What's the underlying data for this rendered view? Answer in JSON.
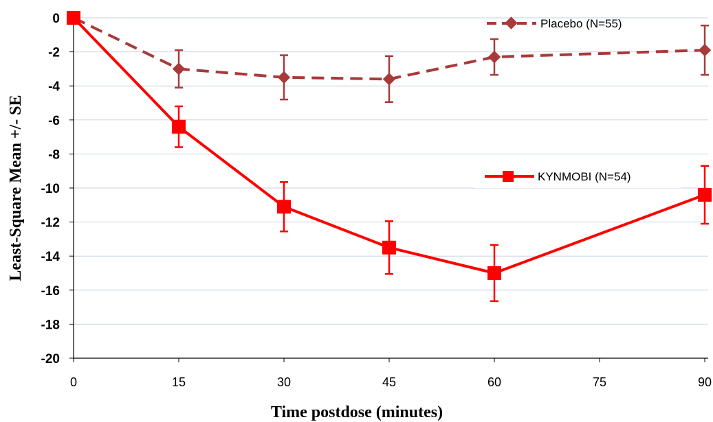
{
  "chart_data": {
    "type": "line",
    "title": "",
    "xlabel": "Time postdose (minutes)",
    "ylabel": "Least-Square Mean +/- SE",
    "x": [
      0,
      15,
      30,
      45,
      60,
      90
    ],
    "xticks": [
      0,
      15,
      30,
      45,
      60,
      75,
      90
    ],
    "xlim": [
      0,
      90
    ],
    "ylim": [
      -20,
      0
    ],
    "yticks": [
      0,
      -2,
      -4,
      -6,
      -8,
      -10,
      -12,
      -14,
      -16,
      -18,
      -20
    ],
    "grid": "horizontal",
    "series": [
      {
        "name": "Placebo (N=55)",
        "color": "#a83a3a",
        "line_style": "dashed",
        "marker": "diamond",
        "values": [
          0,
          -3.0,
          -3.5,
          -3.6,
          -2.3,
          -1.9
        ],
        "se": [
          0,
          1.1,
          1.3,
          1.35,
          1.05,
          1.45
        ]
      },
      {
        "name": "KYNMOBI (N=54)",
        "color": "#ff0000",
        "line_style": "solid",
        "marker": "square",
        "values": [
          0,
          -6.4,
          -11.1,
          -13.5,
          -15.0,
          -10.4
        ],
        "se": [
          0,
          1.2,
          1.45,
          1.55,
          1.65,
          1.7
        ]
      }
    ]
  }
}
